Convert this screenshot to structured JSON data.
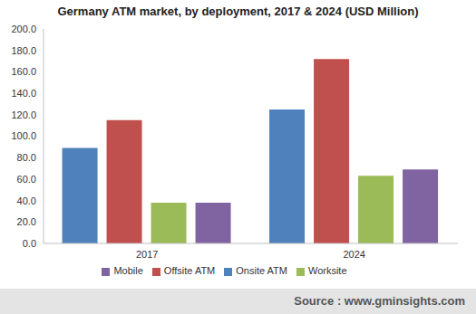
{
  "chart_data": {
    "type": "bar",
    "title": "Germany ATM market, by deployment, 2017 & 2024 (USD Million)",
    "source": "Source : www.gminsights.com",
    "categories": [
      "2017",
      "2024"
    ],
    "series": [
      {
        "name": "Onsite ATM",
        "color": "#4f81bd",
        "values": [
          89,
          125
        ]
      },
      {
        "name": "Offsite ATM",
        "color": "#c0504d",
        "values": [
          115,
          172
        ]
      },
      {
        "name": "Worksite",
        "color": "#9bbb59",
        "values": [
          38,
          63
        ]
      },
      {
        "name": "Mobile",
        "color": "#8064a2",
        "values": [
          38,
          69
        ]
      }
    ],
    "ylim": [
      0,
      200
    ],
    "yticks": [
      {
        "value": 0,
        "label": "0.0"
      },
      {
        "value": 20,
        "label": "20.0"
      },
      {
        "value": 40,
        "label": "40.0"
      },
      {
        "value": 60,
        "label": "60.0"
      },
      {
        "value": 80,
        "label": "80.0"
      },
      {
        "value": 100,
        "label": "100.0"
      },
      {
        "value": 120,
        "label": "120.0"
      },
      {
        "value": 140,
        "label": "140.0"
      },
      {
        "value": 160,
        "label": "160.0"
      },
      {
        "value": 180,
        "label": "180.0"
      },
      {
        "value": 200,
        "label": "200.0"
      }
    ],
    "grid": false,
    "legend": "bottom"
  }
}
